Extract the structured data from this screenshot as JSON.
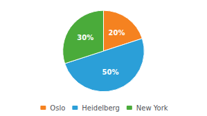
{
  "chart_data": {
    "type": "pie",
    "categories": [
      "Oslo",
      "Heidelberg",
      "New York"
    ],
    "values": [
      20,
      50,
      30
    ],
    "value_labels": [
      "20%",
      "50%",
      "30%"
    ],
    "colors": [
      "#f58220",
      "#2b9fd8",
      "#4aab3a"
    ],
    "data_labels": true,
    "legend": "bottom"
  }
}
